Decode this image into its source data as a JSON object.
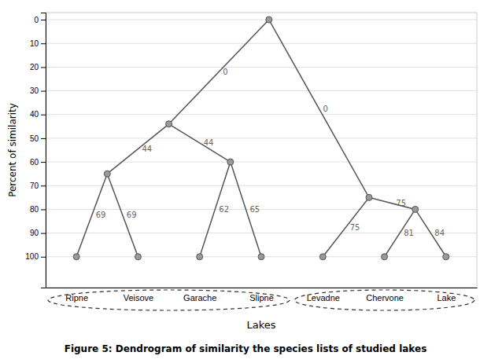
{
  "chart_data": {
    "type": "dendrogram",
    "title": "Figure 5: Dendrogram of similarity the species lists of studied lakes",
    "x_label": "Lakes",
    "y_label": "Percent of similarity",
    "categories": [
      "Ripne",
      "Veisove",
      "Garache",
      "Slipne",
      "Levadne",
      "Chervone",
      "Lake"
    ],
    "values": [
      100,
      100,
      100,
      100,
      100,
      100,
      100
    ],
    "merges": [
      {
        "value": 65,
        "children": [
          {
            "leaf": 0
          },
          {
            "leaf": 1
          }
        ],
        "edge_values": [
          69,
          69
        ]
      },
      {
        "value": 60,
        "children": [
          {
            "leaf": 2
          },
          {
            "leaf": 3
          }
        ],
        "edge_values": [
          62,
          65
        ]
      },
      {
        "value": 44,
        "children": [
          {
            "merge": 0
          },
          {
            "merge": 1
          }
        ],
        "edge_values": [
          44,
          44
        ]
      },
      {
        "value": 80,
        "children": [
          {
            "leaf": 5
          },
          {
            "leaf": 6
          }
        ],
        "edge_values": [
          81,
          84
        ]
      },
      {
        "value": 75,
        "children": [
          {
            "leaf": 4
          },
          {
            "merge": 3
          }
        ],
        "edge_values": [
          75,
          75
        ]
      },
      {
        "value": 0,
        "children": [
          {
            "merge": 2
          },
          {
            "merge": 4
          }
        ],
        "edge_values": [
          0,
          0
        ]
      }
    ],
    "groups": [
      [
        0,
        1,
        2,
        3
      ],
      [
        4,
        5,
        6
      ]
    ],
    "ylim": [
      113,
      -3
    ],
    "yticks": [
      0,
      10,
      20,
      30,
      40,
      50,
      60,
      70,
      80,
      90,
      100
    ],
    "grid": true
  }
}
